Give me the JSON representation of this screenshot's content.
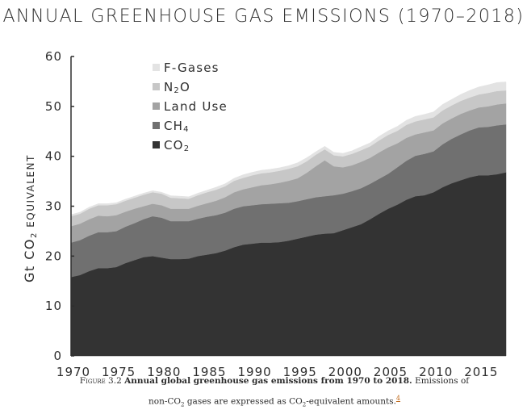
{
  "chart_data": {
    "type": "area",
    "stacked": true,
    "title": "ANNUAL GREENHOUSE GAS EMISSIONS (1970–2018)",
    "xlabel": "",
    "ylabel": "Gt CO2 equivalent",
    "ylabel_parts": {
      "main": "Gt CO",
      "sub": "2",
      "rest": " equivalent"
    },
    "xlim": [
      1970,
      2018
    ],
    "ylim": [
      0,
      60
    ],
    "xticks": [
      1970,
      1975,
      1980,
      1985,
      1990,
      1995,
      2000,
      2005,
      2010,
      2015
    ],
    "yticks": [
      0,
      10,
      20,
      30,
      40,
      50,
      60
    ],
    "grid": false,
    "legend_position": "top-left",
    "x": [
      1970,
      1971,
      1972,
      1973,
      1974,
      1975,
      1976,
      1977,
      1978,
      1979,
      1980,
      1981,
      1982,
      1983,
      1984,
      1985,
      1986,
      1987,
      1988,
      1989,
      1990,
      1991,
      1992,
      1993,
      1994,
      1995,
      1996,
      1997,
      1998,
      1999,
      2000,
      2001,
      2002,
      2003,
      2004,
      2005,
      2006,
      2007,
      2008,
      2009,
      2010,
      2011,
      2012,
      2013,
      2014,
      2015,
      2016,
      2017,
      2018
    ],
    "series": [
      {
        "name": "CO2",
        "label_main": "CO",
        "label_sub": "2",
        "color": "#333333",
        "values": [
          15.8,
          16.2,
          17.0,
          17.6,
          17.6,
          17.8,
          18.6,
          19.2,
          19.8,
          20.0,
          19.7,
          19.4,
          19.4,
          19.5,
          20.0,
          20.3,
          20.6,
          21.1,
          21.8,
          22.3,
          22.5,
          22.7,
          22.7,
          22.8,
          23.1,
          23.5,
          23.9,
          24.3,
          24.5,
          24.6,
          25.2,
          25.8,
          26.4,
          27.4,
          28.5,
          29.5,
          30.3,
          31.3,
          32.0,
          32.2,
          32.8,
          33.8,
          34.6,
          35.2,
          35.8,
          36.2,
          36.2,
          36.4,
          36.8
        ]
      },
      {
        "name": "CH4",
        "label_main": "CH",
        "label_sub": "4",
        "color": "#707070",
        "values": [
          6.9,
          7.0,
          7.1,
          7.2,
          7.2,
          7.2,
          7.3,
          7.4,
          7.6,
          8.0,
          8.0,
          7.6,
          7.6,
          7.5,
          7.5,
          7.6,
          7.6,
          7.6,
          7.7,
          7.7,
          7.7,
          7.7,
          7.8,
          7.8,
          7.6,
          7.5,
          7.5,
          7.5,
          7.5,
          7.6,
          7.3,
          7.2,
          7.2,
          7.1,
          7.0,
          7.0,
          7.5,
          7.8,
          8.1,
          8.3,
          8.2,
          8.6,
          8.9,
          9.2,
          9.4,
          9.6,
          9.7,
          9.8,
          9.6
        ]
      },
      {
        "name": "Land Use",
        "label_main": "Land Use",
        "label_sub": "",
        "color": "#a3a3a3",
        "values": [
          3.3,
          3.3,
          3.3,
          3.3,
          3.2,
          3.2,
          3.0,
          2.9,
          2.6,
          2.5,
          2.5,
          2.5,
          2.5,
          2.5,
          2.6,
          2.7,
          2.9,
          3.1,
          3.3,
          3.4,
          3.6,
          3.8,
          3.9,
          4.1,
          4.4,
          4.6,
          5.3,
          6.2,
          7.2,
          5.8,
          5.3,
          5.2,
          5.3,
          5.2,
          5.3,
          5.3,
          4.8,
          4.6,
          4.3,
          4.3,
          4.2,
          4.2,
          4.1,
          4.1,
          4.0,
          4.0,
          4.1,
          4.2,
          4.2
        ]
      },
      {
        "name": "N2O",
        "label_main": "N",
        "label_sub": "2",
        "label_rest": "O",
        "color": "#c7c7c7",
        "values": [
          2.0,
          2.0,
          2.1,
          2.1,
          2.2,
          2.2,
          2.2,
          2.2,
          2.3,
          2.3,
          2.3,
          2.2,
          2.1,
          2.0,
          2.1,
          2.2,
          2.2,
          2.2,
          2.3,
          2.3,
          2.4,
          2.4,
          2.4,
          2.4,
          2.4,
          2.4,
          2.3,
          2.3,
          2.2,
          2.2,
          2.2,
          2.3,
          2.3,
          2.3,
          2.4,
          2.5,
          2.5,
          2.6,
          2.6,
          2.6,
          2.6,
          2.6,
          2.6,
          2.6,
          2.6,
          2.6,
          2.7,
          2.7,
          2.6
        ]
      },
      {
        "name": "F-Gases",
        "label_main": "F-Gases",
        "label_sub": "",
        "color": "#e3e3e3",
        "values": [
          0.3,
          0.3,
          0.3,
          0.3,
          0.3,
          0.3,
          0.3,
          0.3,
          0.3,
          0.3,
          0.3,
          0.4,
          0.4,
          0.4,
          0.4,
          0.4,
          0.5,
          0.5,
          0.5,
          0.6,
          0.6,
          0.6,
          0.6,
          0.6,
          0.6,
          0.7,
          0.7,
          0.6,
          0.6,
          0.6,
          0.6,
          0.6,
          0.7,
          0.7,
          0.8,
          0.8,
          0.9,
          0.9,
          1.0,
          1.0,
          1.1,
          1.2,
          1.2,
          1.3,
          1.4,
          1.5,
          1.6,
          1.7,
          1.7
        ]
      }
    ]
  },
  "caption": {
    "figure_label": "Figure 3.2",
    "bold_text": "Annual global greenhouse gas emissions from 1970 to 2018.",
    "text_1": "Emissions of",
    "text_2a": "non-CO",
    "text_2_sub1": "2",
    "text_2b": " gases are expressed as CO",
    "text_2_sub2": "2",
    "text_2c": "-equivalent amounts.",
    "footnote": "4"
  }
}
